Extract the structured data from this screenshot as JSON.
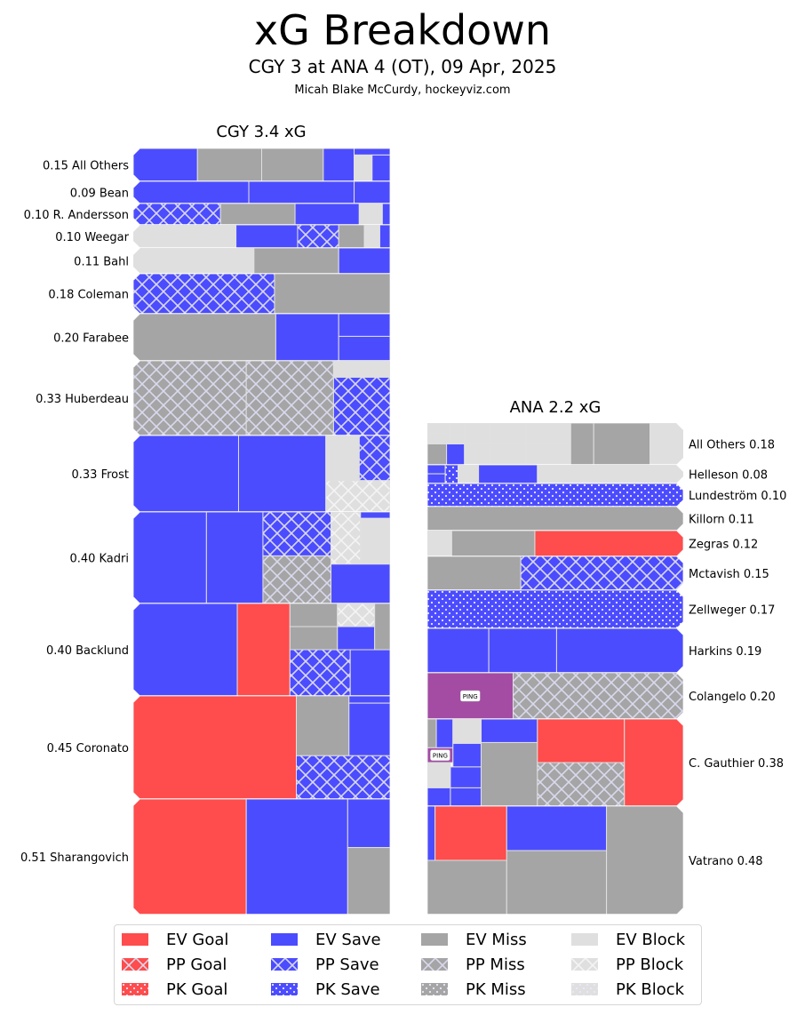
{
  "header": {
    "title": "xG Breakdown",
    "subtitle": "CGY 3 at ANA 4 (OT), 09 Apr, 2025",
    "credit": "Micah Blake McCurdy, hockeyviz.com"
  },
  "colors": {
    "goal": "#ff4c4c",
    "save": "#4c4cff",
    "miss": "#a5a5a5",
    "block": "#dfdfdf",
    "penalty": "#a44ba4",
    "separator": "#e0e0e0"
  },
  "legend": [
    {
      "label": "EV Goal",
      "outcome": "goal",
      "strength": "EV"
    },
    {
      "label": "PP Goal",
      "outcome": "goal",
      "strength": "PP"
    },
    {
      "label": "PK Goal",
      "outcome": "goal",
      "strength": "PK"
    },
    {
      "label": "EV Save",
      "outcome": "save",
      "strength": "EV"
    },
    {
      "label": "PP Save",
      "outcome": "save",
      "strength": "PP"
    },
    {
      "label": "PK Save",
      "outcome": "save",
      "strength": "PK"
    },
    {
      "label": "EV Miss",
      "outcome": "miss",
      "strength": "EV"
    },
    {
      "label": "PP Miss",
      "outcome": "miss",
      "strength": "PP"
    },
    {
      "label": "PK Miss",
      "outcome": "miss",
      "strength": "PK"
    },
    {
      "label": "EV Block",
      "outcome": "block",
      "strength": "EV"
    },
    {
      "label": "PP Block",
      "outcome": "block",
      "strength": "PP"
    },
    {
      "label": "PK Block",
      "outcome": "block",
      "strength": "PK"
    }
  ],
  "chart_data": {
    "type": "treemap",
    "title": "xG Breakdown",
    "teams": [
      {
        "name": "CGY",
        "title": "CGY 3.4 xG",
        "total_xg": 3.4,
        "label_side": "left",
        "players": [
          {
            "name": "All Others",
            "xg": 0.15,
            "label": "0.15 All Others",
            "shots": [
              [
                "save",
                "EV"
              ],
              [
                "miss",
                "EV"
              ],
              [
                "miss",
                "EV"
              ],
              [
                "save",
                "EV"
              ],
              [
                "save",
                "EV"
              ],
              [
                "block",
                "EV"
              ],
              [
                "save",
                "EV"
              ]
            ]
          },
          {
            "name": "Bean",
            "xg": 0.09,
            "label": "0.09 Bean",
            "shots": [
              [
                "save",
                "EV"
              ],
              [
                "save",
                "EV"
              ],
              [
                "save",
                "EV"
              ]
            ]
          },
          {
            "name": "R. Andersson",
            "xg": 0.1,
            "label": "0.10 R. Andersson",
            "shots": [
              [
                "save",
                "PP"
              ],
              [
                "miss",
                "EV"
              ],
              [
                "save",
                "EV"
              ],
              [
                "block",
                "EV"
              ],
              [
                "save",
                "EV"
              ]
            ]
          },
          {
            "name": "Weegar",
            "xg": 0.1,
            "label": "0.10 Weegar",
            "shots": [
              [
                "block",
                "EV"
              ],
              [
                "save",
                "EV"
              ],
              [
                "save",
                "PP"
              ],
              [
                "miss",
                "EV"
              ],
              [
                "block",
                "EV"
              ],
              [
                "save",
                "EV"
              ]
            ]
          },
          {
            "name": "Bahl",
            "xg": 0.11,
            "label": "0.11 Bahl",
            "shots": [
              [
                "block",
                "EV"
              ],
              [
                "miss",
                "EV"
              ],
              [
                "save",
                "EV"
              ]
            ]
          },
          {
            "name": "Coleman",
            "xg": 0.18,
            "label": "0.18 Coleman",
            "shots": [
              [
                "save",
                "PP"
              ],
              [
                "miss",
                "EV"
              ]
            ]
          },
          {
            "name": "Farabee",
            "xg": 0.2,
            "label": "0.20 Farabee",
            "shots": [
              [
                "miss",
                "EV"
              ],
              [
                "save",
                "EV"
              ],
              [
                "save",
                "EV"
              ],
              [
                "save",
                "EV"
              ]
            ]
          },
          {
            "name": "Huberdeau",
            "xg": 0.33,
            "label": "0.33 Huberdeau",
            "shots": [
              [
                "miss",
                "PP"
              ],
              [
                "miss",
                "PP"
              ],
              [
                "block",
                "EV"
              ],
              [
                "save",
                "PP"
              ]
            ]
          },
          {
            "name": "Frost",
            "xg": 0.33,
            "label": "0.33 Frost",
            "shots": [
              [
                "save",
                "EV"
              ],
              [
                "save",
                "EV"
              ],
              [
                "block",
                "EV"
              ],
              [
                "save",
                "PP"
              ],
              [
                "block",
                "PP"
              ]
            ]
          },
          {
            "name": "Kadri",
            "xg": 0.4,
            "label": "0.40 Kadri",
            "shots": [
              [
                "save",
                "EV"
              ],
              [
                "save",
                "EV"
              ],
              [
                "save",
                "PP"
              ],
              [
                "miss",
                "PP"
              ],
              [
                "block",
                "PP"
              ],
              [
                "save",
                "EV"
              ],
              [
                "block",
                "EV"
              ],
              [
                "save",
                "EV"
              ]
            ]
          },
          {
            "name": "Backlund",
            "xg": 0.4,
            "label": "0.40 Backlund",
            "shots": [
              [
                "save",
                "EV"
              ],
              [
                "goal",
                "EV"
              ],
              [
                "miss",
                "EV"
              ],
              [
                "block",
                "PP"
              ],
              [
                "miss",
                "EV"
              ],
              [
                "save",
                "EV"
              ],
              [
                "miss",
                "EV"
              ],
              [
                "save",
                "PP"
              ],
              [
                "save",
                "EV"
              ]
            ]
          },
          {
            "name": "Coronato",
            "xg": 0.45,
            "label": "0.45 Coronato",
            "shots": [
              [
                "goal",
                "EV"
              ],
              [
                "miss",
                "EV"
              ],
              [
                "save",
                "EV"
              ],
              [
                "save",
                "EV"
              ],
              [
                "save",
                "PP"
              ]
            ]
          },
          {
            "name": "Sharangovich",
            "xg": 0.51,
            "label": "0.51 Sharangovich",
            "shots": [
              [
                "goal",
                "EV"
              ],
              [
                "save",
                "EV"
              ],
              [
                "save",
                "EV"
              ],
              [
                "miss",
                "EV"
              ]
            ]
          }
        ]
      },
      {
        "name": "ANA",
        "title": "ANA 2.2 xG",
        "total_xg": 2.2,
        "label_side": "right",
        "players": [
          {
            "name": "All Others",
            "xg": 0.18,
            "label": "All Others 0.18",
            "shots": [
              [
                "block",
                "EV"
              ],
              [
                "block",
                "EV"
              ],
              [
                "block",
                "EV"
              ],
              [
                "block",
                "EV"
              ],
              [
                "miss",
                "EV"
              ],
              [
                "save",
                "EV"
              ],
              [
                "block",
                "EV"
              ],
              [
                "block",
                "EV"
              ],
              [
                "block",
                "EV"
              ],
              [
                "block",
                "EV"
              ],
              [
                "block",
                "EV"
              ],
              [
                "miss",
                "EV"
              ],
              [
                "miss",
                "EV"
              ],
              [
                "block",
                "EV"
              ]
            ]
          },
          {
            "name": "Helleson",
            "xg": 0.08,
            "label": "Helleson 0.08",
            "shots": [
              [
                "save",
                "EV"
              ],
              [
                "save",
                "EV"
              ],
              [
                "save",
                "PK"
              ],
              [
                "block",
                "EV"
              ],
              [
                "save",
                "EV"
              ],
              [
                "block",
                "EV"
              ]
            ]
          },
          {
            "name": "Lundeström",
            "xg": 0.1,
            "label": "Lundeström 0.10",
            "shots": [
              [
                "save",
                "PK"
              ]
            ]
          },
          {
            "name": "Killorn",
            "xg": 0.11,
            "label": "Killorn 0.11",
            "shots": [
              [
                "miss",
                "EV"
              ]
            ]
          },
          {
            "name": "Zegras",
            "xg": 0.12,
            "label": "Zegras 0.12",
            "shots": [
              [
                "block",
                "EV"
              ],
              [
                "miss",
                "EV"
              ],
              [
                "goal",
                "EV"
              ]
            ]
          },
          {
            "name": "Mctavish",
            "xg": 0.15,
            "label": "Mctavish 0.15",
            "shots": [
              [
                "miss",
                "EV"
              ],
              [
                "save",
                "PP"
              ]
            ]
          },
          {
            "name": "Zellweger",
            "xg": 0.17,
            "label": "Zellweger 0.17",
            "shots": [
              [
                "save",
                "PK"
              ]
            ]
          },
          {
            "name": "Harkins",
            "xg": 0.19,
            "label": "Harkins 0.19",
            "shots": [
              [
                "save",
                "EV"
              ],
              [
                "save",
                "EV"
              ],
              [
                "save",
                "EV"
              ]
            ]
          },
          {
            "name": "Colangelo",
            "xg": 0.2,
            "label": "Colangelo 0.20",
            "shots": [
              [
                "penalty",
                "EV",
                "PING"
              ],
              [
                "miss",
                "PP"
              ]
            ]
          },
          {
            "name": "C. Gauthier",
            "xg": 0.38,
            "label": "C. Gauthier 0.38",
            "shots": [
              [
                "miss",
                "EV"
              ],
              [
                "save",
                "EV"
              ],
              [
                "block",
                "EV"
              ],
              [
                "penalty",
                "EV",
                "PING"
              ],
              [
                "save",
                "EV"
              ],
              [
                "block",
                "EV"
              ],
              [
                "save",
                "EV"
              ],
              [
                "save",
                "EV"
              ],
              [
                "save",
                "EV"
              ],
              [
                "save",
                "EV"
              ],
              [
                "miss",
                "EV"
              ],
              [
                "goal",
                "EV"
              ],
              [
                "miss",
                "PP"
              ],
              [
                "goal",
                "EV"
              ]
            ]
          },
          {
            "name": "Vatrano",
            "xg": 0.48,
            "label": "Vatrano 0.48",
            "shots": [
              [
                "save",
                "EV"
              ],
              [
                "goal",
                "EV"
              ],
              [
                "miss",
                "EV"
              ],
              [
                "save",
                "EV"
              ],
              [
                "miss",
                "EV"
              ],
              [
                "miss",
                "EV"
              ]
            ]
          }
        ]
      }
    ]
  }
}
